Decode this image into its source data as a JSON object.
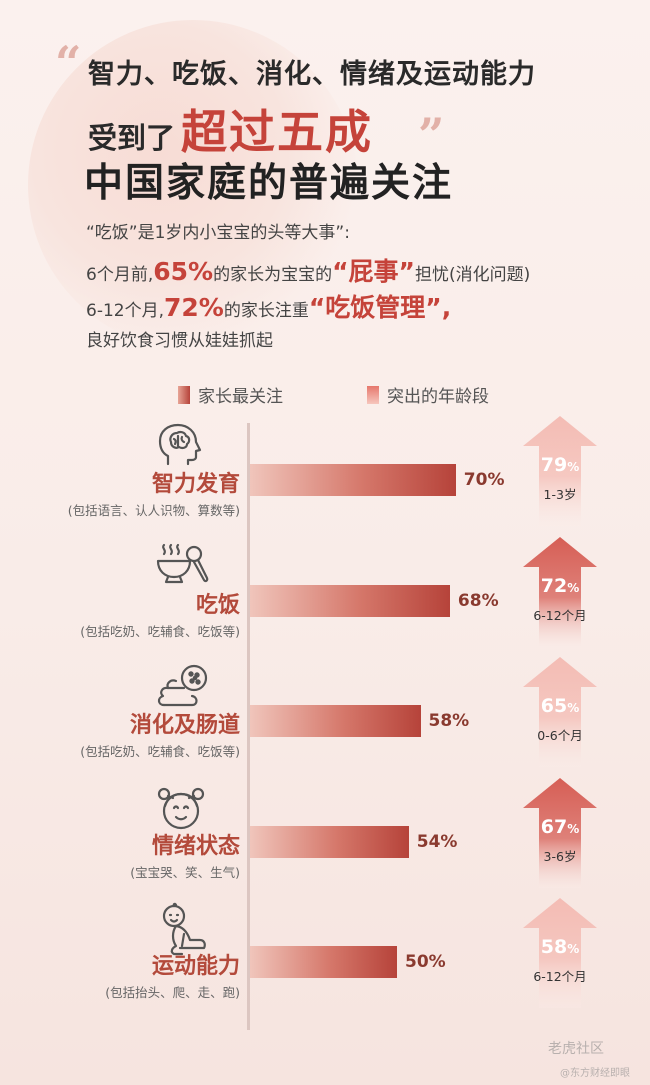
{
  "header": {
    "line1": "智力、吃饭、消化、情绪及运动能力",
    "line2_prefix": "受到了",
    "line2_highlight": "超过五成",
    "line3": "中国家庭的普遍关注"
  },
  "intro": {
    "line1": "“吃饭”是1岁内小宝宝的头等大事”:",
    "line2_a": "6个月前,",
    "line2_pct": "65%",
    "line2_b": "的家长为宝宝的",
    "line2_kw": "“屁事”",
    "line2_c": "担忧(消化问题)",
    "line3_a": "6-12个月,",
    "line3_pct": "72%",
    "line3_b": "的家长注重",
    "line3_kw": "“吃饭管理”,",
    "line4": "良好饮食习惯从娃娃抓起"
  },
  "legend": {
    "bar_label": "家长最关注",
    "arrow_label": "突出的年龄段"
  },
  "chart_data": {
    "type": "bar",
    "orientation": "horizontal",
    "categories": [
      "智力发育",
      "吃饭",
      "消化及肠道",
      "情绪状态",
      "运动能力"
    ],
    "subtitles": [
      "(包括语言、认人识物、算数等)",
      "(包括吃奶、吃辅食、吃饭等)",
      "(包括吃奶、吃辅食、吃饭等)",
      "(宝宝哭、笑、生气)",
      "(包括抬头、爬、走、跑)"
    ],
    "series": [
      {
        "name": "家长最关注",
        "values": [
          70,
          68,
          58,
          54,
          50
        ]
      },
      {
        "name": "突出的年龄段",
        "values": [
          79,
          72,
          65,
          67,
          58
        ],
        "age_groups": [
          "1-3岁",
          "6-12个月",
          "0-6个月",
          "3-6岁",
          "6-12个月"
        ]
      }
    ],
    "value_suffix": "%",
    "icons": [
      "brain-head-icon",
      "bowl-spoon-icon",
      "digestion-icon",
      "child-face-icon",
      "crawling-baby-icon"
    ],
    "highlight": [
      false,
      true,
      false,
      true,
      false
    ],
    "xlim": [
      0,
      100
    ]
  },
  "watermark": {
    "line1": "老虎社区",
    "line2": "@东方财经即眼"
  },
  "colors": {
    "accent": "#c5433a",
    "arrow_light": "#f4bcb4",
    "arrow_strong": "#d65e55"
  }
}
